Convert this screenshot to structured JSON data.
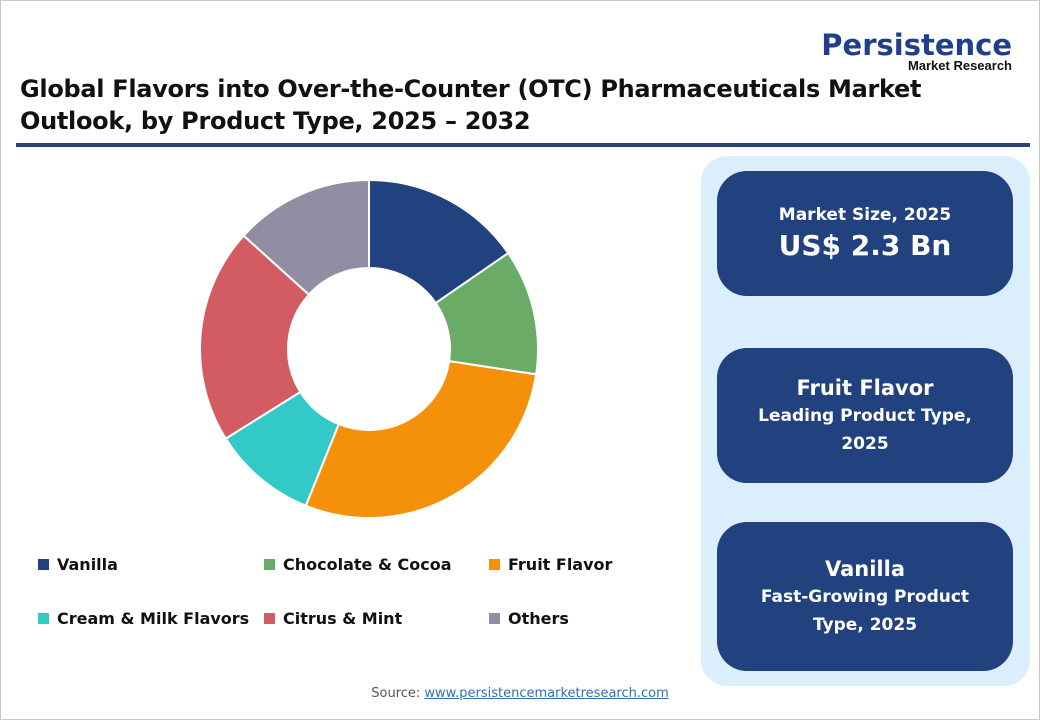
{
  "logo": {
    "main": "Persistence",
    "sub": "Market Research"
  },
  "title": {
    "line1": "Global Flavors into Over-the-Counter (OTC) Pharmaceuticals Market",
    "line2": "Outlook, by Product Type, 2025 – 2032"
  },
  "chart_data": {
    "type": "pie",
    "subtype": "donut",
    "title": "Global Flavors into Over-the-Counter (OTC) Pharmaceuticals Market Outlook, by Product Type, 2025 – 2032",
    "categories": [
      "Vanilla",
      "Chocolate & Cocoa",
      "Fruit Flavor",
      "Cream & Milk Flavors",
      "Citrus & Mint",
      "Others"
    ],
    "values": [
      15.4,
      12.0,
      28.7,
      10.0,
      20.6,
      13.3
    ],
    "unit": "% share (estimated from slice angles)",
    "colors": [
      "#22427f",
      "#6aab67",
      "#f5900a",
      "#33c9c6",
      "#d25c62",
      "#918ea3"
    ],
    "legend_position": "bottom"
  },
  "legend": [
    {
      "label": "Vanilla",
      "color": "#22427f"
    },
    {
      "label": "Chocolate & Cocoa",
      "color": "#6aab67"
    },
    {
      "label": "Fruit Flavor",
      "color": "#f5900a"
    },
    {
      "label": "Cream & Milk Flavors",
      "color": "#33c9c6"
    },
    {
      "label": "Citrus & Mint",
      "color": "#d25c62"
    },
    {
      "label": "Others",
      "color": "#918ea3"
    }
  ],
  "cards": {
    "market_size": {
      "label": "Market Size, 2025",
      "value": "US$ 2.3 Bn"
    },
    "leading": {
      "heading": "Fruit Flavor",
      "line1": "Leading Product Type,",
      "line2": "2025"
    },
    "fastest": {
      "heading": "Vanilla",
      "line1": "Fast-Growing Product",
      "line2": "Type, 2025"
    }
  },
  "source": {
    "label": "Source:",
    "link": "www.persistencemarketresearch.com"
  }
}
